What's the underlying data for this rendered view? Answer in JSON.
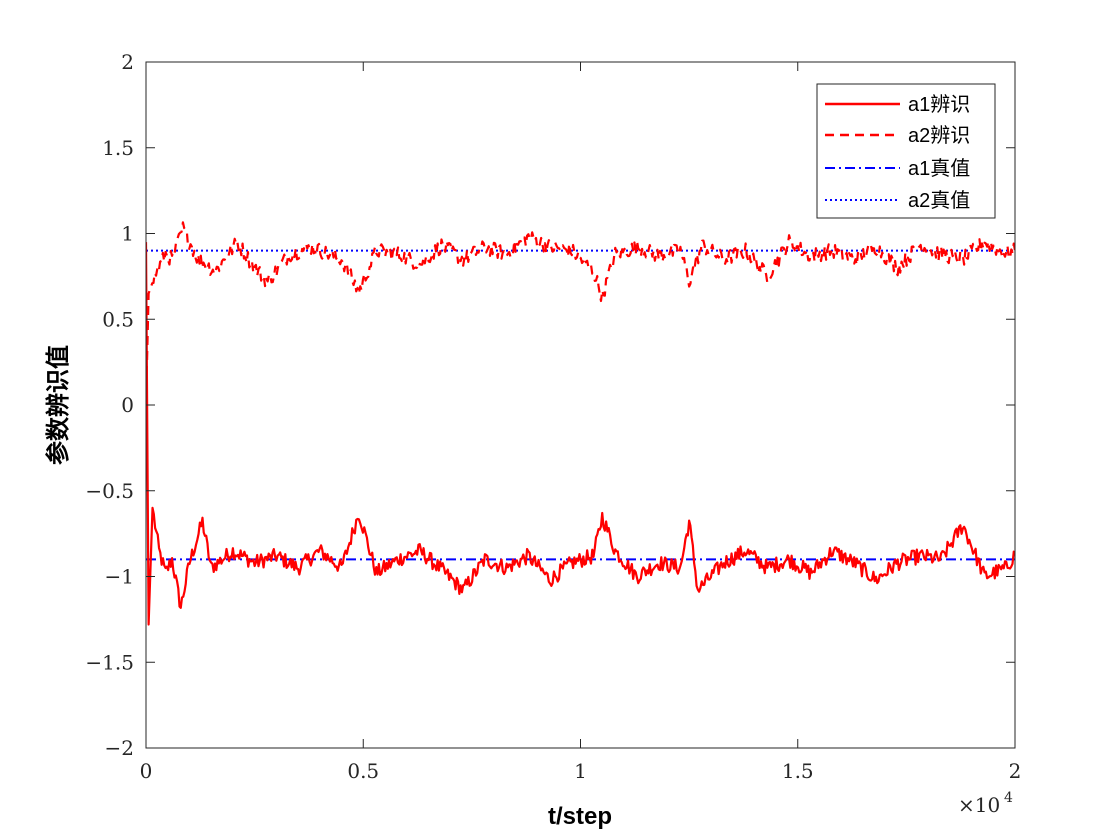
{
  "chart_data": {
    "type": "line",
    "xlabel": "t/step",
    "ylabel": "参数辨识值",
    "xlim": [
      0,
      20000
    ],
    "ylim": [
      -2,
      2
    ],
    "x_ticks": [
      0,
      5000,
      10000,
      15000,
      20000
    ],
    "x_tick_labels": [
      "0",
      "0.5",
      "1",
      "1.5",
      "2"
    ],
    "x_exponent_label": "×10",
    "x_exponent_power": "4",
    "y_ticks": [
      -2,
      -1.5,
      -1,
      -0.5,
      0,
      0.5,
      1,
      1.5,
      2
    ],
    "y_tick_labels": [
      "−2",
      "−1.5",
      "−1",
      "−0.5",
      "0",
      "0.5",
      "1",
      "1.5",
      "2"
    ],
    "grid": false,
    "legend_position": "top-right",
    "series": [
      {
        "name": "a1辨识",
        "color": "#ff0000",
        "style": "solid",
        "true_value": -0.9,
        "points": [
          [
            0,
            0.95
          ],
          [
            60,
            -1.28
          ],
          [
            150,
            -0.6
          ],
          [
            300,
            -0.85
          ],
          [
            450,
            -0.98
          ],
          [
            600,
            -0.9
          ],
          [
            800,
            -1.18
          ],
          [
            1000,
            -0.92
          ],
          [
            1300,
            -0.68
          ],
          [
            1500,
            -0.95
          ],
          [
            2000,
            -0.85
          ],
          [
            2500,
            -0.92
          ],
          [
            3000,
            -0.88
          ],
          [
            3500,
            -0.95
          ],
          [
            4000,
            -0.85
          ],
          [
            4500,
            -0.95
          ],
          [
            4900,
            -0.63
          ],
          [
            5300,
            -0.98
          ],
          [
            5800,
            -0.9
          ],
          [
            6300,
            -0.85
          ],
          [
            6800,
            -0.96
          ],
          [
            7300,
            -1.08
          ],
          [
            7800,
            -0.9
          ],
          [
            8300,
            -0.95
          ],
          [
            8800,
            -0.88
          ],
          [
            9300,
            -1.02
          ],
          [
            9800,
            -0.92
          ],
          [
            10300,
            -0.88
          ],
          [
            10500,
            -0.65
          ],
          [
            10800,
            -0.85
          ],
          [
            11300,
            -1.0
          ],
          [
            11800,
            -0.92
          ],
          [
            12300,
            -0.95
          ],
          [
            12500,
            -0.68
          ],
          [
            12700,
            -1.08
          ],
          [
            13300,
            -0.92
          ],
          [
            13800,
            -0.85
          ],
          [
            14300,
            -0.95
          ],
          [
            14800,
            -0.9
          ],
          [
            15300,
            -0.98
          ],
          [
            15800,
            -0.85
          ],
          [
            16300,
            -0.92
          ],
          [
            16800,
            -1.02
          ],
          [
            17300,
            -0.92
          ],
          [
            17800,
            -0.88
          ],
          [
            18300,
            -0.9
          ],
          [
            18800,
            -0.7
          ],
          [
            19300,
            -1.0
          ],
          [
            19800,
            -0.95
          ],
          [
            20000,
            -0.87
          ]
        ]
      },
      {
        "name": "a2辨识",
        "color": "#ff0000",
        "style": "dashed",
        "true_value": 0.9,
        "points": [
          [
            0,
            0.0
          ],
          [
            60,
            0.65
          ],
          [
            200,
            0.75
          ],
          [
            450,
            0.88
          ],
          [
            600,
            0.85
          ],
          [
            850,
            1.03
          ],
          [
            1200,
            0.85
          ],
          [
            1600,
            0.78
          ],
          [
            2100,
            0.95
          ],
          [
            2500,
            0.8
          ],
          [
            2800,
            0.72
          ],
          [
            3300,
            0.88
          ],
          [
            3800,
            0.92
          ],
          [
            4500,
            0.85
          ],
          [
            4900,
            0.66
          ],
          [
            5300,
            0.9
          ],
          [
            5800,
            0.88
          ],
          [
            6300,
            0.82
          ],
          [
            6800,
            0.93
          ],
          [
            7300,
            0.85
          ],
          [
            7800,
            0.92
          ],
          [
            8300,
            0.88
          ],
          [
            8800,
            0.98
          ],
          [
            9300,
            0.92
          ],
          [
            9800,
            0.9
          ],
          [
            10300,
            0.78
          ],
          [
            10500,
            0.63
          ],
          [
            10800,
            0.88
          ],
          [
            11300,
            0.92
          ],
          [
            11800,
            0.87
          ],
          [
            12300,
            0.9
          ],
          [
            12500,
            0.72
          ],
          [
            12800,
            0.93
          ],
          [
            13300,
            0.85
          ],
          [
            13800,
            0.9
          ],
          [
            14300,
            0.75
          ],
          [
            14800,
            0.95
          ],
          [
            15300,
            0.87
          ],
          [
            15800,
            0.9
          ],
          [
            16300,
            0.85
          ],
          [
            16800,
            0.92
          ],
          [
            17300,
            0.8
          ],
          [
            17800,
            0.93
          ],
          [
            18300,
            0.88
          ],
          [
            18800,
            0.85
          ],
          [
            19300,
            0.95
          ],
          [
            19800,
            0.88
          ],
          [
            20000,
            0.9
          ]
        ]
      },
      {
        "name": "a1真值",
        "color": "#0000ff",
        "style": "dashdot",
        "points": [
          [
            0,
            -0.9
          ],
          [
            20000,
            -0.9
          ]
        ]
      },
      {
        "name": "a2真值",
        "color": "#0000ff",
        "style": "dotted",
        "points": [
          [
            0,
            0.9
          ],
          [
            20000,
            0.9
          ]
        ]
      }
    ]
  }
}
